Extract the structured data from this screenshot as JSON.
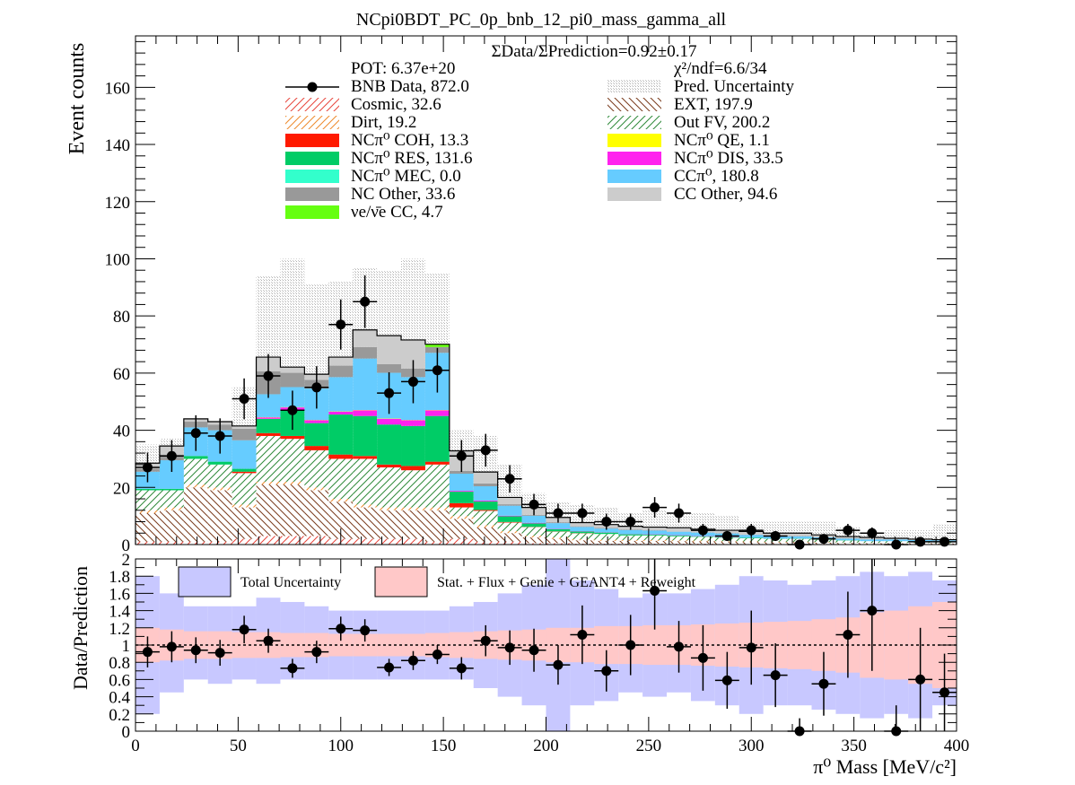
{
  "chart_data": [
    {
      "type": "bar",
      "stacked": true,
      "title": "NCpi0BDT_PC_0p_bnb_12_pi0_mass_gamma_all",
      "ylabel": "Event counts",
      "xlabel": "",
      "ylim": [
        0,
        178
      ],
      "xlim": [
        0,
        400
      ],
      "yticks": [
        0,
        20,
        40,
        60,
        80,
        100,
        120,
        140,
        160
      ],
      "xticks": [
        0,
        50,
        100,
        150,
        200,
        250,
        300,
        350,
        400
      ],
      "bin_width": 11.764,
      "ratio_text": "ΣData/ΣPrediction=0.92±0.17",
      "pot_text": "POT: 6.37e+20",
      "chi2_text": "χ²/ndf=6.6/34",
      "legend": [
        {
          "label": "BNB Data, 872.0",
          "key": "data"
        },
        {
          "label": "Pred. Uncertainty",
          "key": "unc"
        },
        {
          "label": "Cosmic, 32.6",
          "key": "cosmic"
        },
        {
          "label": "EXT, 197.9",
          "key": "ext"
        },
        {
          "label": "Dirt, 19.2",
          "key": "dirt"
        },
        {
          "label": "Out FV, 200.2",
          "key": "outfv"
        },
        {
          "label": "NCπ⁰ COH,  13.3",
          "key": "coh"
        },
        {
          "label": "NCπ⁰ QE,  1.1",
          "key": "qe"
        },
        {
          "label": "NCπ⁰ RES,  131.6",
          "key": "res"
        },
        {
          "label": "NCπ⁰ DIS,  33.5",
          "key": "dis"
        },
        {
          "label": "NCπ⁰ MEC,  0.0",
          "key": "mec"
        },
        {
          "label": "CCπ⁰, 180.8",
          "key": "ccpi0"
        },
        {
          "label": "NC Other, 33.6",
          "key": "ncother"
        },
        {
          "label": "CC Other, 94.6",
          "key": "ccother"
        },
        {
          "label": "νe/ν̄e CC, 4.7",
          "key": "nue"
        }
      ],
      "colors": {
        "cosmic": "#e8463c",
        "ext": "#7a3b1c",
        "dirt": "#ee8a2c",
        "outfv": "#2f8a3a",
        "coh": "#ff1a00",
        "qe": "#ffff00",
        "res": "#00cc66",
        "dis": "#ff22ee",
        "mec": "#33ffcc",
        "ccpi0": "#66ccff",
        "ncother": "#999999",
        "ccother": "#cccccc",
        "nue": "#66ff11",
        "unc": "#bdbdbd"
      },
      "stack_order": [
        "cosmic",
        "ext",
        "dirt",
        "outfv",
        "coh",
        "res",
        "dis",
        "qe",
        "mec",
        "ccpi0",
        "ncother",
        "nue",
        "ccother"
      ],
      "series": [
        {
          "key": "cosmic",
          "values": [
            1,
            1,
            1,
            1,
            2,
            3,
            3,
            3,
            2,
            2,
            2,
            2,
            1,
            2,
            1,
            1,
            0.5,
            0.5,
            0.3,
            0.3,
            0.3,
            0.3,
            0.3,
            0.3,
            0.2,
            0.2,
            0.2,
            0.2,
            0.2,
            0.1,
            0.1,
            0.1,
            0.1,
            0.1
          ]
        },
        {
          "key": "ext",
          "values": [
            10,
            11,
            19,
            18,
            11,
            18,
            18,
            16,
            13,
            11,
            10,
            10,
            11,
            7,
            5,
            3,
            2,
            1.5,
            1.2,
            1,
            1,
            1,
            0.9,
            0.8,
            0.8,
            0.7,
            0.6,
            0.6,
            0.5,
            0.5,
            0.4,
            0.4,
            0.4,
            0.3
          ]
        },
        {
          "key": "dirt",
          "values": [
            1,
            1,
            1,
            1,
            1,
            1,
            1,
            1,
            1,
            1,
            1,
            1,
            1,
            1,
            0.8,
            0.7,
            0.6,
            0.5,
            0.4,
            0.4,
            0.3,
            0.3,
            0.3,
            0.3,
            0.2,
            0.2,
            0.2,
            0.2,
            0.2,
            0.1,
            0.1,
            0.1,
            0.1,
            0.1
          ]
        },
        {
          "key": "outfv",
          "values": [
            7,
            6,
            9,
            8,
            11,
            16,
            15,
            13,
            14,
            16,
            14,
            13,
            15,
            3,
            5,
            3,
            3,
            2,
            2,
            2,
            1.6,
            1.6,
            1.4,
            1.3,
            1.2,
            1.1,
            1,
            1,
            0.8,
            0.7,
            0.6,
            0.6,
            0.5,
            0.5
          ]
        },
        {
          "key": "coh",
          "values": [
            0,
            0,
            0,
            0,
            0.5,
            1,
            1,
            1.5,
            1.5,
            1,
            1,
            1.5,
            1,
            1.5,
            0.3,
            0.2,
            0.1,
            0.1,
            0.1,
            0,
            0,
            0,
            0,
            0,
            0,
            0,
            0,
            0,
            0,
            0,
            0,
            0,
            0,
            0
          ]
        },
        {
          "key": "res",
          "values": [
            0.5,
            0.5,
            1,
            1,
            1,
            5,
            9,
            8,
            14,
            14,
            14,
            14,
            16,
            4,
            3,
            2,
            1.2,
            0.8,
            0.6,
            0.5,
            0.4,
            0.3,
            0.3,
            0.2,
            0.2,
            0.2,
            0.1,
            0.1,
            0.1,
            0.1,
            0,
            0,
            0,
            0
          ]
        },
        {
          "key": "dis",
          "values": [
            0,
            0,
            0,
            0,
            0,
            0.5,
            1,
            1,
            1,
            2,
            2,
            2,
            2,
            0.3,
            0.3,
            0.2,
            0.2,
            0.1,
            0.1,
            0.1,
            0.1,
            0.1,
            0.1,
            0.1,
            0.1,
            0,
            0,
            0,
            0,
            0,
            0,
            0,
            0,
            0
          ]
        },
        {
          "key": "qe",
          "values": [
            0,
            0,
            0,
            0,
            0,
            0.1,
            0.1,
            0.1,
            0.1,
            0.1,
            0.1,
            0.1,
            0.1,
            0,
            0,
            0,
            0,
            0,
            0,
            0,
            0,
            0,
            0,
            0,
            0,
            0,
            0,
            0,
            0,
            0,
            0,
            0,
            0,
            0
          ]
        },
        {
          "key": "mec",
          "values": [
            0,
            0,
            0,
            0,
            0,
            0,
            0,
            0,
            0,
            0,
            0,
            0,
            0,
            0,
            0,
            0,
            0,
            0,
            0,
            0,
            0,
            0,
            0,
            0,
            0,
            0,
            0,
            0,
            0,
            0,
            0,
            0,
            0,
            0
          ]
        },
        {
          "key": "ccpi0",
          "values": [
            6,
            10,
            10,
            11,
            10,
            8,
            7,
            11,
            12,
            18,
            16,
            15,
            20,
            6,
            5,
            3.5,
            2.5,
            2,
            1.5,
            1.3,
            1.4,
            1.3,
            1.2,
            1.2,
            1.2,
            1,
            0.8,
            0.8,
            0.7,
            0.6,
            0.6,
            0.6,
            0.5,
            0.5
          ]
        },
        {
          "key": "ncother",
          "values": [
            1,
            2,
            2,
            2,
            4,
            8,
            5,
            3,
            4,
            4,
            3,
            3,
            2,
            1,
            1,
            0.5,
            0.3,
            0.3,
            0.2,
            0.2,
            0.2,
            0.1,
            0.1,
            0.1,
            0.1,
            0.1,
            0.1,
            0.1,
            0.1,
            0.1,
            0.1,
            0,
            0,
            0
          ]
        },
        {
          "key": "nue",
          "values": [
            0,
            0,
            0,
            0,
            0,
            0,
            0,
            0,
            0,
            0,
            0,
            0,
            1,
            0,
            0,
            0,
            0,
            0,
            0,
            0,
            0,
            0,
            0,
            0,
            0,
            0,
            0,
            0,
            0,
            0,
            0,
            0,
            0,
            0
          ]
        },
        {
          "key": "ccother",
          "values": [
            2,
            3,
            1,
            1,
            1,
            5,
            2,
            2,
            3,
            6,
            10,
            10,
            0,
            7,
            4,
            2.4,
            2.6,
            1.7,
            1.3,
            1.2,
            1.1,
            1.1,
            1.3,
            1.1,
            1,
            1.1,
            1,
            1,
            0.8,
            0.6,
            0.6,
            0.4,
            0.3,
            0.2
          ]
        }
      ],
      "uncertainty_total": [
        35,
        37,
        43,
        41,
        55,
        94,
        100,
        91,
        92,
        97,
        96,
        100,
        95,
        40,
        38,
        28,
        18,
        15,
        14,
        13,
        11,
        12,
        11,
        11,
        10,
        8,
        8,
        8,
        8,
        6,
        4,
        5,
        5,
        7
      ],
      "data": {
        "x": [
          5.88,
          17.65,
          29.41,
          41.18,
          52.94,
          64.71,
          76.47,
          88.24,
          100.0,
          111.76,
          123.53,
          135.29,
          147.06,
          158.82,
          170.59,
          182.35,
          194.12,
          205.88,
          217.65,
          229.41,
          241.18,
          252.94,
          264.71,
          276.47,
          288.24,
          300.0,
          311.76,
          323.53,
          335.29,
          347.06,
          358.82,
          370.59,
          382.35,
          394.12
        ],
        "y": [
          27,
          31,
          39,
          38,
          51,
          59,
          47,
          55,
          77,
          85,
          53,
          57,
          61,
          31,
          33,
          23,
          14,
          11,
          11,
          8,
          8,
          13,
          11,
          5,
          3,
          5,
          3,
          0,
          2,
          5,
          4,
          0,
          1,
          1
        ]
      }
    },
    {
      "type": "scatter",
      "xlabel": "π⁰ Mass [MeV/c²]",
      "ylabel": "Data/Prediction",
      "ylim": [
        0,
        2
      ],
      "xlim": [
        0,
        400
      ],
      "yticks": [
        0,
        0.2,
        0.4,
        0.6,
        0.8,
        1,
        1.2,
        1.4,
        1.6,
        1.8,
        2
      ],
      "yticklabels": [
        "0",
        "0.2",
        "0.4",
        "0.6",
        "0.8",
        "1",
        "1.2",
        "1.4",
        "1.6",
        "1.8",
        "2"
      ],
      "xticks": [
        0,
        50,
        100,
        150,
        200,
        250,
        300,
        350,
        400
      ],
      "legend": [
        {
          "label": "Total Uncertainty",
          "key": "total"
        },
        {
          "label": "Stat. + Flux + Genie + GEANT4 + Reweight",
          "key": "syst"
        }
      ],
      "colors": {
        "total": "#c8c8ff",
        "syst": "#ffc8c8"
      },
      "total_band": {
        "low": [
          0.2,
          0.45,
          0.6,
          0.55,
          0.6,
          0.55,
          0.6,
          0.6,
          0.6,
          0.6,
          0.6,
          0.6,
          0.6,
          0.6,
          0.5,
          0.4,
          0.3,
          0,
          0.3,
          0.35,
          0.45,
          0.4,
          0.45,
          0.35,
          0.3,
          0.2,
          0.3,
          0.3,
          0.25,
          0.2,
          0.15,
          0.2,
          0.15,
          0.3
        ],
        "high": [
          1.8,
          1.6,
          1.45,
          1.45,
          1.45,
          1.55,
          1.5,
          1.45,
          1.4,
          1.4,
          1.4,
          1.4,
          1.4,
          1.45,
          1.5,
          1.6,
          1.7,
          2,
          1.75,
          1.65,
          1.55,
          1.6,
          1.6,
          1.65,
          1.7,
          1.8,
          1.75,
          1.7,
          1.75,
          1.8,
          1.85,
          1.8,
          1.85,
          1.75
        ]
      },
      "syst_band": {
        "low": [
          0.8,
          0.82,
          0.84,
          0.84,
          0.85,
          0.85,
          0.86,
          0.86,
          0.87,
          0.87,
          0.87,
          0.87,
          0.86,
          0.85,
          0.84,
          0.83,
          0.82,
          0.8,
          0.8,
          0.78,
          0.78,
          0.77,
          0.77,
          0.76,
          0.75,
          0.74,
          0.73,
          0.72,
          0.7,
          0.68,
          0.62,
          0.6,
          0.55,
          0.5
        ],
        "high": [
          1.2,
          1.18,
          1.16,
          1.16,
          1.15,
          1.15,
          1.14,
          1.14,
          1.13,
          1.13,
          1.13,
          1.13,
          1.14,
          1.15,
          1.16,
          1.17,
          1.18,
          1.2,
          1.2,
          1.22,
          1.22,
          1.23,
          1.23,
          1.24,
          1.25,
          1.26,
          1.27,
          1.28,
          1.3,
          1.32,
          1.38,
          1.4,
          1.45,
          1.5
        ]
      },
      "points": {
        "x": [
          5.88,
          17.65,
          29.41,
          41.18,
          52.94,
          64.71,
          76.47,
          88.24,
          100.0,
          111.76,
          123.53,
          135.29,
          147.06,
          158.82,
          170.59,
          182.35,
          194.12,
          205.88,
          217.65,
          229.41,
          241.18,
          252.94,
          264.71,
          276.47,
          288.24,
          300.0,
          311.76,
          323.53,
          335.29,
          347.06,
          358.82,
          370.59,
          382.35,
          394.12
        ],
        "y": [
          0.92,
          0.98,
          0.94,
          0.91,
          1.18,
          1.05,
          0.73,
          0.92,
          1.19,
          1.17,
          0.74,
          0.82,
          0.89,
          0.73,
          1.05,
          0.97,
          0.94,
          0.77,
          1.12,
          0.7,
          1.0,
          1.63,
          0.98,
          0.85,
          0.59,
          0.97,
          0.65,
          0.0,
          0.55,
          1.12,
          1.4,
          0.0,
          0.6,
          0.45
        ],
        "err": [
          0.18,
          0.18,
          0.15,
          0.15,
          0.16,
          0.14,
          0.11,
          0.13,
          0.14,
          0.13,
          0.1,
          0.11,
          0.11,
          0.13,
          0.18,
          0.2,
          0.25,
          0.23,
          0.34,
          0.24,
          0.35,
          0.45,
          0.3,
          0.38,
          0.33,
          0.43,
          0.37,
          0.15,
          0.37,
          0.5,
          0.7,
          0.3,
          0.6,
          0.45
        ]
      },
      "reference_line": 1
    }
  ]
}
